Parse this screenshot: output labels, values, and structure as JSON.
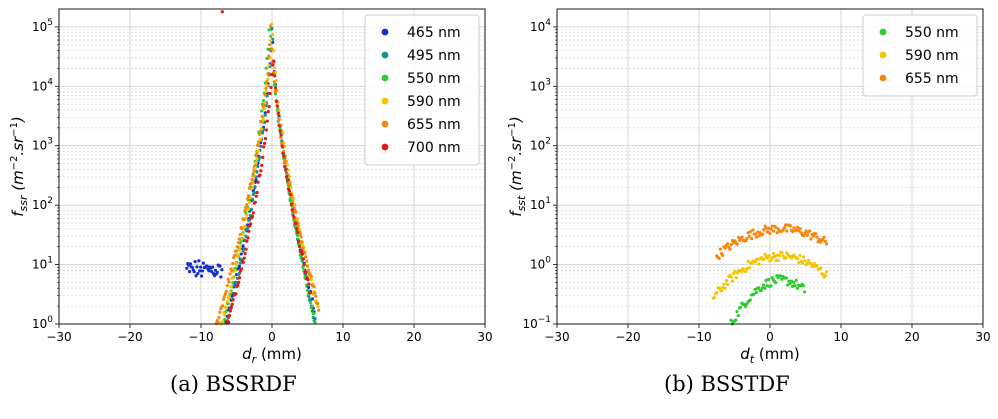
{
  "captions": {
    "a": "(a) BSSRDF",
    "b": "(b) BSSTDF"
  },
  "chart_data": [
    {
      "type": "scatter",
      "id": "a",
      "xlabel": "d_r (mm)",
      "ylabel": "f_ssr (m^-2.sr^-1)",
      "xlim": [
        -30,
        30
      ],
      "ylim": [
        1,
        200000
      ],
      "yscale": "log",
      "grid": true,
      "legend_position": "top-right",
      "xticks": [
        -30,
        -20,
        -10,
        0,
        10,
        20,
        30
      ],
      "xtick_labels": [
        "−30",
        "−20",
        "−10",
        "0",
        "10",
        "20",
        "30"
      ],
      "yticks": [
        {
          "v": 1,
          "m": "10",
          "e": "0"
        },
        {
          "v": 10,
          "m": "10",
          "e": "1"
        },
        {
          "v": 100,
          "m": "10",
          "e": "2"
        },
        {
          "v": 1000,
          "m": "10",
          "e": "3"
        },
        {
          "v": 10000,
          "m": "10",
          "e": "4"
        },
        {
          "v": 100000,
          "m": "10",
          "e": "5"
        }
      ],
      "model": "peak",
      "series": [
        {
          "name": "465 nm",
          "color": "#1630c8",
          "xmin": -12,
          "xmax": 6,
          "A": 120000,
          "k": 1.45,
          "shift": 0.0,
          "left_floor": 8,
          "right_floor": 0
        },
        {
          "name": "495 nm",
          "color": "#13958f",
          "xmin": -12,
          "xmax": 6.2,
          "A": 130000,
          "k": 1.5,
          "shift": 0.0,
          "left_floor": 0,
          "right_floor": 0
        },
        {
          "name": "550 nm",
          "color": "#2ccd2c",
          "xmin": -12,
          "xmax": 6.2,
          "A": 200000,
          "k": 1.5,
          "shift": -0.3,
          "left_floor": 0,
          "right_floor": 0
        },
        {
          "name": "590 nm",
          "color": "#f5c400",
          "xmin": -12,
          "xmax": 6.5,
          "A": 150000,
          "k": 1.4,
          "shift": 0.0,
          "left_floor": 0,
          "right_floor": 0
        },
        {
          "name": "655 nm",
          "color": "#f7860c",
          "xmin": -11.5,
          "xmax": 6.6,
          "A": 100000,
          "k": 1.3,
          "shift": -0.2,
          "left_floor": 0,
          "right_floor": 0
        },
        {
          "name": "700 nm",
          "color": "#e31818",
          "xmin": -9.5,
          "xmax": 5.5,
          "A": 50000,
          "k": 1.35,
          "shift": 0.2,
          "left_floor": 0,
          "right_floor": 0
        }
      ]
    },
    {
      "type": "scatter",
      "id": "b",
      "xlabel": "d_t (mm)",
      "ylabel": "f_sst (m^-2.sr^-1)",
      "xlim": [
        -30,
        30
      ],
      "ylim": [
        0.1,
        20000
      ],
      "yscale": "log",
      "grid": true,
      "legend_position": "top-right",
      "xticks": [
        -30,
        -20,
        -10,
        0,
        10,
        20,
        30
      ],
      "xtick_labels": [
        "−30",
        "−20",
        "−10",
        "0",
        "10",
        "20",
        "30"
      ],
      "yticks": [
        {
          "v": 0.1,
          "m": "10",
          "e": "−1"
        },
        {
          "v": 1,
          "m": "10",
          "e": "0"
        },
        {
          "v": 10,
          "m": "10",
          "e": "1"
        },
        {
          "v": 100,
          "m": "10",
          "e": "2"
        },
        {
          "v": 1000,
          "m": "10",
          "e": "3"
        },
        {
          "v": 10000,
          "m": "10",
          "e": "4"
        }
      ],
      "model": "arch",
      "series": [
        {
          "name": "550 nm",
          "color": "#2ccd2c",
          "xmin": -6,
          "xmax": 5,
          "peak": 0.55,
          "center": 1.5,
          "c": 0.035
        },
        {
          "name": "590 nm",
          "color": "#f5c400",
          "xmin": -8,
          "xmax": 8,
          "peak": 1.4,
          "center": 1.5,
          "c": 0.018
        },
        {
          "name": "655 nm",
          "color": "#f7860c",
          "xmin": -7.5,
          "xmax": 8,
          "peak": 4.0,
          "center": 1.5,
          "c": 0.013
        }
      ]
    }
  ]
}
